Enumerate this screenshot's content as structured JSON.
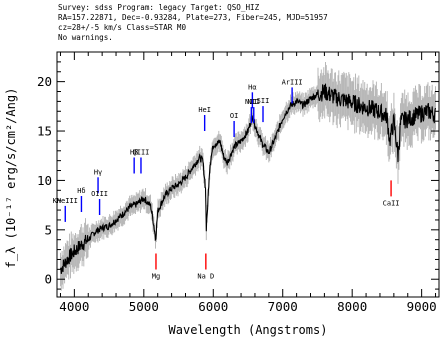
{
  "header": {
    "line1": "Survey: sdss Program: legacy Target: QSO_HIZ",
    "line2": "RA=157.22871, Dec=-0.93284, Plate=273, Fiber=245, MJD=51957",
    "line3": "cz=28+/-5 km/s Class=STAR M0",
    "line4": "No warnings."
  },
  "chart_data": {
    "type": "line",
    "xlabel": "Wavelength (Angstroms)",
    "ylabel": "f_λ (10⁻¹⁷ erg/s/cm²/Ang)",
    "xlim": [
      3750,
      9250
    ],
    "ylim": [
      -1.8,
      23
    ],
    "xticks": [
      4000,
      5000,
      6000,
      7000,
      8000,
      9000
    ],
    "yticks": [
      0,
      5,
      10,
      15,
      20
    ],
    "grid": false,
    "series": [
      {
        "color": "#000000",
        "x": [
          3800,
          3900,
          4000,
          4100,
          4200,
          4300,
          4400,
          4500,
          4600,
          4700,
          4800,
          4900,
          5000,
          5100,
          5150,
          5170,
          5200,
          5300,
          5400,
          5500,
          5600,
          5700,
          5800,
          5850,
          5890,
          5900,
          5950,
          6000,
          6100,
          6150,
          6200,
          6300,
          6400,
          6500,
          6563,
          6600,
          6700,
          6800,
          6900,
          7000,
          7100,
          7200,
          7300,
          7400,
          7500,
          7600,
          7700,
          7800,
          7900,
          8000,
          8100,
          8200,
          8300,
          8400,
          8500,
          8540,
          8600,
          8660,
          8700,
          8800,
          8900,
          9000,
          9100,
          9200
        ],
        "y": [
          1.0,
          2.0,
          2.8,
          3.5,
          4.0,
          4.8,
          5.2,
          5.4,
          6.0,
          6.6,
          7.3,
          7.6,
          8.2,
          7.4,
          5.2,
          4.0,
          6.9,
          8.4,
          9.2,
          9.6,
          10.3,
          11.3,
          12.3,
          12.0,
          9.0,
          5.0,
          11.5,
          13.6,
          13.9,
          12.4,
          11.8,
          13.4,
          14.0,
          15.0,
          16.5,
          15.6,
          13.8,
          12.8,
          14.4,
          16.3,
          17.5,
          18.0,
          17.6,
          18.3,
          18.7,
          19.0,
          18.6,
          18.3,
          18.1,
          17.9,
          17.6,
          17.4,
          17.2,
          16.9,
          16.5,
          14.0,
          16.0,
          12.5,
          16.0,
          16.2,
          16.5,
          16.8,
          17.0,
          16.6
        ]
      }
    ],
    "line_labels": [
      {
        "text": "KNeIII",
        "x": 3869,
        "y": 5.8,
        "color": "#0000ff"
      },
      {
        "text": "Hδ",
        "x": 4102,
        "y": 6.8,
        "color": "#0000ff"
      },
      {
        "text": "Hγ",
        "x": 4341,
        "y": 8.7,
        "color": "#0000ff"
      },
      {
        "text": "OIII",
        "x": 4363,
        "y": 6.5,
        "color": "#0000ff"
      },
      {
        "text": "Hβ",
        "x": 4861,
        "y": 10.7,
        "color": "#0000ff"
      },
      {
        "text": "OIII",
        "x": 4959,
        "y": 10.7,
        "color": "#0000ff"
      },
      {
        "text": "HeI",
        "x": 5876,
        "y": 15.0,
        "color": "#0000ff"
      },
      {
        "text": "OI",
        "x": 6300,
        "y": 14.4,
        "color": "#0000ff"
      },
      {
        "text": "NII",
        "x": 6548,
        "y": 15.8,
        "color": "#0000ff"
      },
      {
        "text": "Hα",
        "x": 6563,
        "y": 17.3,
        "color": "#0000ff"
      },
      {
        "text": "NII",
        "x": 6583,
        "y": 15.8,
        "color": "#0000ff"
      },
      {
        "text": "SII",
        "x": 6716,
        "y": 15.9,
        "color": "#0000ff"
      },
      {
        "text": "ArIII",
        "x": 7135,
        "y": 17.8,
        "color": "#0000ff"
      },
      {
        "text": "Mg",
        "x": 5175,
        "y": 2.6,
        "color": "#ff0000"
      },
      {
        "text": "Na D",
        "x": 5893,
        "y": 2.6,
        "color": "#ff0000"
      },
      {
        "text": "CaII",
        "x": 8560,
        "y": 10.0,
        "color": "#ff0000"
      }
    ]
  }
}
